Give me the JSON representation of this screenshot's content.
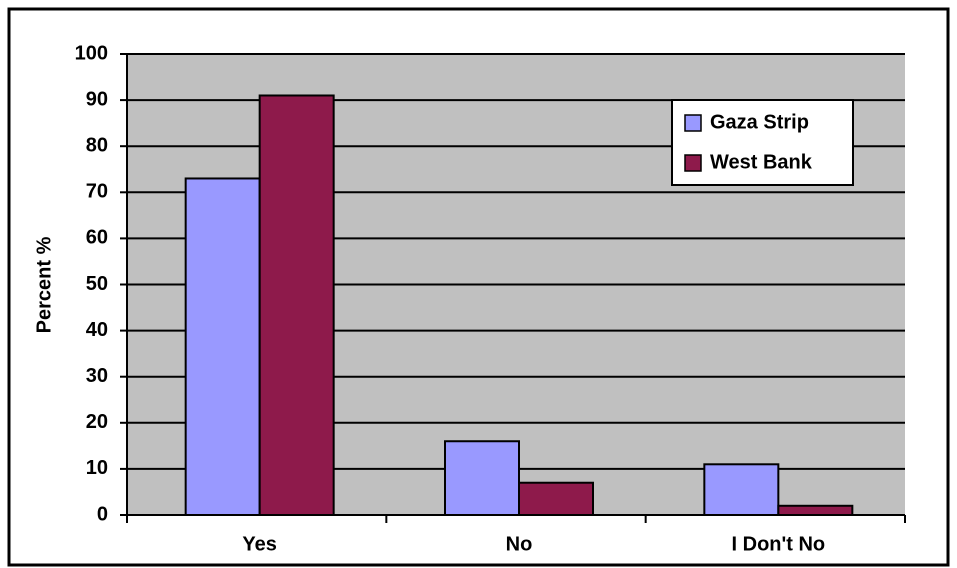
{
  "chart_data": {
    "type": "bar",
    "y_label": "Percent %",
    "categories": [
      "Yes",
      "No",
      "I Don't No"
    ],
    "series": [
      {
        "name": "Gaza Strip",
        "color": "#9999ff",
        "values": [
          73,
          16,
          11
        ]
      },
      {
        "name": "West Bank",
        "color": "#8e1a4b",
        "values": [
          91,
          7,
          2
        ]
      }
    ],
    "ylim": [
      0,
      100
    ],
    "yticks": [
      0,
      10,
      20,
      30,
      40,
      50,
      60,
      70,
      80,
      90,
      100
    ],
    "grid": true,
    "legend": "upper right"
  }
}
